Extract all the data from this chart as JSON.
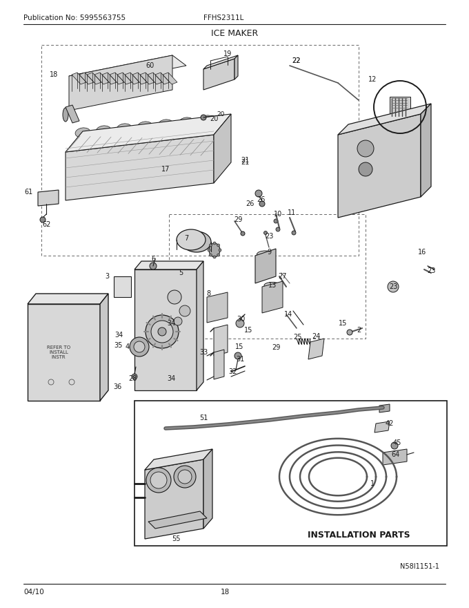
{
  "title": "ICE MAKER",
  "pub_no": "Publication No: 5995563755",
  "model": "FFHS2311L",
  "date": "04/10",
  "page": "18",
  "diagram_id": "N58I1151-1",
  "installation_parts_label": "INSTALLATION PARTS",
  "bg_color": "#ffffff",
  "line_color": "#1a1a1a",
  "gray1": "#aaaaaa",
  "gray2": "#cccccc",
  "gray3": "#e0e0e0",
  "title_fontsize": 9,
  "label_fontsize": 7.0,
  "small_fontsize": 6.5
}
